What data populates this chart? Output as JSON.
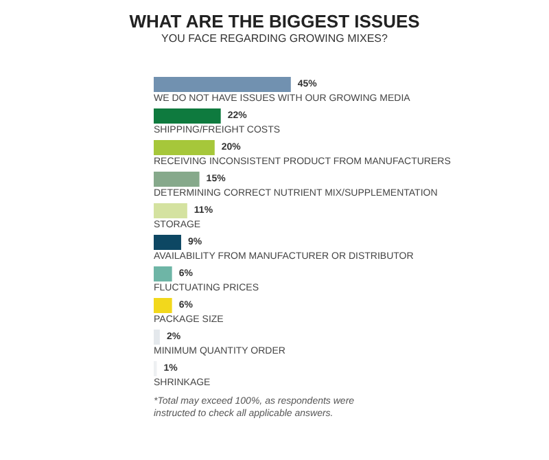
{
  "chart_data": {
    "type": "bar",
    "orientation": "horizontal",
    "title": "WHAT ARE THE BIGGEST ISSUES",
    "subtitle": "YOU FACE REGARDING GROWING MIXES?",
    "categories": [
      "WE DO NOT HAVE ISSUES WITH OUR GROWING MEDIA",
      "SHIPPING/FREIGHT COSTS",
      "RECEIVING INCONSISTENT PRODUCT FROM MANUFACTURERS",
      "DETERMINING CORRECT NUTRIENT MIX/SUPPLEMENTATION",
      "STORAGE",
      "AVAILABILITY FROM MANUFACTURER OR DISTRIBUTOR",
      "FLUCTUATING PRICES",
      "PACKAGE SIZE",
      "MINIMUM QUANTITY ORDER",
      "SHRINKAGE"
    ],
    "values": [
      45,
      22,
      20,
      15,
      11,
      9,
      6,
      6,
      2,
      1
    ],
    "colors": [
      "#7191b0",
      "#0e7a3e",
      "#a6c73a",
      "#86a98b",
      "#d4e2a0",
      "#0d4763",
      "#6eb5a6",
      "#f2d81c",
      "#e4e8ec",
      "#eef0f2"
    ],
    "value_labels": [
      "45%",
      "22%",
      "20%",
      "15%",
      "11%",
      "9%",
      "6%",
      "6%",
      "2%",
      "1%"
    ],
    "annotations": [
      "*Total may exceed 100%, as respondents were instructed to check all applicable answers."
    ]
  }
}
